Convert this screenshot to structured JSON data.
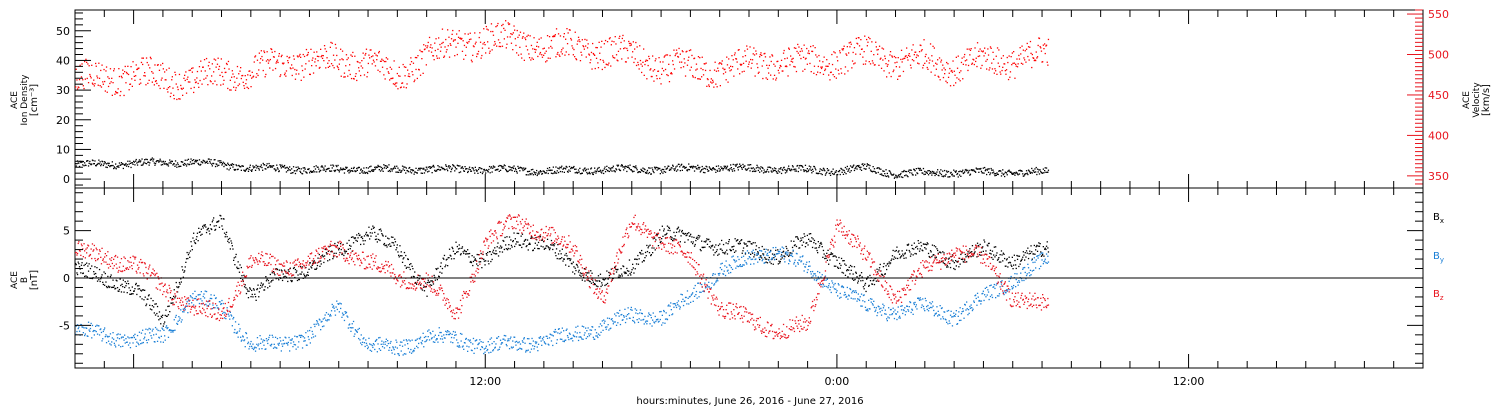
{
  "chart_data": [
    {
      "type": "scatter",
      "panel": "solar-wind-density-velocity",
      "ylabel_left": [
        "ACE",
        "Ion Density",
        "[cm⁻³]"
      ],
      "ylabel_right": [
        "ACE",
        "Velocity",
        "[km/s]"
      ],
      "y_left_ticks": [
        "0",
        "10",
        "20",
        "30",
        "40",
        "50"
      ],
      "y_right_ticks": [
        "350",
        "400",
        "450",
        "500",
        "550"
      ],
      "y_left_range": [
        -3,
        57
      ],
      "y_right_range": [
        335,
        555
      ],
      "x_range_hours": [
        -2,
        44
      ],
      "data_end_hour": 31.2,
      "grid": false,
      "colors": {
        "density": "#000000",
        "velocity": "#ff0000"
      },
      "series": [
        {
          "axis": "left",
          "x": [
            -2,
            0,
            2,
            4,
            6,
            8,
            10,
            12,
            14,
            16,
            18,
            20,
            22,
            24,
            25,
            26,
            28,
            30,
            31.2
          ],
          "values": [
            5,
            5.5,
            6,
            4,
            3.5,
            3.5,
            3.5,
            3.5,
            3,
            3.5,
            3.5,
            4,
            3.5,
            3,
            4,
            2,
            2.5,
            2.5,
            2.5
          ],
          "spread": 1.2
        },
        {
          "axis": "right",
          "x": [
            -2,
            0,
            1,
            2,
            3,
            4,
            5,
            6,
            7,
            8,
            9,
            10,
            11,
            12,
            13,
            14,
            15,
            16,
            17,
            18,
            19,
            20,
            21,
            22,
            23,
            24,
            25,
            26,
            27,
            28,
            29,
            30,
            31.2
          ],
          "values": [
            470,
            475,
            472,
            468,
            478,
            480,
            488,
            495,
            490,
            495,
            470,
            505,
            510,
            522,
            515,
            512,
            508,
            505,
            498,
            485,
            484,
            482,
            488,
            492,
            490,
            495,
            500,
            492,
            495,
            486,
            492,
            495,
            500
          ],
          "spread": 18
        }
      ]
    },
    {
      "type": "scatter",
      "panel": "magnetic-field",
      "ylabel_left": [
        "ACE",
        "B",
        "[nT]"
      ],
      "y_ticks": [
        "-5",
        "0",
        "5"
      ],
      "y_range": [
        -9.5,
        9.5
      ],
      "x_range_hours": [
        -2,
        44
      ],
      "data_end_hour": 31.2,
      "zero_line": true,
      "legend_placement": "right",
      "series": [
        {
          "name": "Bₓ",
          "color": "#000000",
          "x": [
            -2,
            0,
            1,
            2,
            3,
            4,
            5,
            6,
            7,
            8,
            9,
            10,
            11,
            12,
            13,
            14,
            15,
            16,
            17,
            18,
            19,
            20,
            21,
            22,
            23,
            24,
            25,
            26,
            27,
            28,
            29,
            30,
            31.2
          ],
          "values": [
            1,
            -1,
            -4.5,
            4,
            6,
            -2,
            0.5,
            1,
            3,
            5,
            3,
            -1,
            3,
            2,
            4,
            4,
            1,
            0,
            1,
            5,
            4,
            3.5,
            3,
            2.5,
            4,
            2,
            -1,
            3,
            3,
            2,
            3,
            2,
            3
          ],
          "spread": 0.8
        },
        {
          "name": "Bᵧ",
          "color": "#1a7fd6",
          "x": [
            -2,
            0,
            1,
            2,
            3,
            4,
            5,
            6,
            7,
            8,
            9,
            10,
            11,
            12,
            13,
            14,
            15,
            16,
            17,
            18,
            19,
            20,
            21,
            22,
            23,
            24,
            25,
            26,
            27,
            28,
            29,
            30,
            31.2
          ],
          "values": [
            -5.5,
            -6.5,
            -6,
            -2,
            -3,
            -7,
            -7,
            -6,
            -3,
            -7,
            -7.5,
            -6,
            -6.5,
            -7,
            -7,
            -6.5,
            -6,
            -5,
            -4,
            -4,
            -2,
            1,
            2,
            3,
            1,
            -1,
            -3,
            -3.5,
            -3,
            -4,
            -2,
            0,
            2
          ],
          "spread": 0.8
        },
        {
          "name": "B_z",
          "color": "#e8141e",
          "x": [
            -2,
            0,
            1,
            2,
            3,
            4,
            5,
            6,
            7,
            8,
            9,
            10,
            11,
            12,
            13,
            14,
            15,
            16,
            17,
            18,
            19,
            20,
            21,
            22,
            23,
            24,
            25,
            26,
            27,
            28,
            29,
            30,
            31.2
          ],
          "values": [
            3,
            1.5,
            -1,
            -3,
            -4,
            2,
            1,
            2,
            3,
            2,
            0,
            0,
            -4,
            4,
            6,
            5,
            3,
            -2,
            6,
            4,
            2,
            -3,
            -4.5,
            -5.5,
            -5,
            6,
            2,
            -2,
            1,
            3,
            2,
            -2,
            -3
          ],
          "spread": 0.9
        }
      ],
      "legend": [
        {
          "label": "B",
          "sub": "x",
          "color": "#000000"
        },
        {
          "label": "B",
          "sub": "y",
          "color": "#1a7fd6"
        },
        {
          "label": "B",
          "sub": "z",
          "color": "#e8141e"
        }
      ]
    }
  ],
  "x_axis": {
    "ticks": [
      {
        "hour": 12,
        "label": "12:00"
      },
      {
        "hour": 24,
        "label": "0:00"
      },
      {
        "hour": 36,
        "label": "12:00"
      }
    ],
    "xlabel": "hours:minutes, June 26, 2016 - June 27, 2016"
  }
}
